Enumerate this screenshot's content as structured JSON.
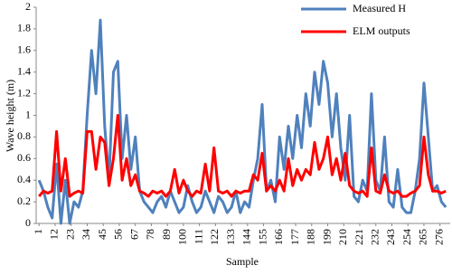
{
  "chart_data": {
    "type": "line",
    "xlabel": "Sample",
    "ylabel": "Wave height (m)",
    "x": [
      1,
      4,
      7,
      10,
      13,
      16,
      19,
      22,
      25,
      28,
      31,
      34,
      37,
      40,
      43,
      46,
      49,
      52,
      55,
      58,
      61,
      64,
      67,
      70,
      73,
      76,
      79,
      82,
      85,
      88,
      91,
      94,
      97,
      100,
      103,
      106,
      109,
      112,
      115,
      118,
      121,
      124,
      127,
      130,
      133,
      136,
      139,
      142,
      145,
      148,
      151,
      154,
      157,
      160,
      163,
      166,
      169,
      172,
      175,
      178,
      181,
      184,
      187,
      190,
      193,
      196,
      199,
      202,
      205,
      208,
      211,
      214,
      217,
      220,
      223,
      226,
      229,
      232,
      235,
      238,
      241,
      244,
      247,
      250,
      253,
      256,
      259,
      262,
      265,
      268,
      271,
      274,
      277,
      280
    ],
    "series": [
      {
        "name": "Measured H",
        "color": "#4f81bd",
        "values": [
          0.4,
          0.3,
          0.15,
          0.05,
          0.55,
          0,
          0.4,
          0,
          0.2,
          0.15,
          0.3,
          1.0,
          1.6,
          1.2,
          1.88,
          0.9,
          0.4,
          1.4,
          1.5,
          0.6,
          1.0,
          0.5,
          0.8,
          0.3,
          0.2,
          0.15,
          0.1,
          0.2,
          0.25,
          0.15,
          0.3,
          0.2,
          0.1,
          0.15,
          0.35,
          0.2,
          0.1,
          0.15,
          0.3,
          0.2,
          0.1,
          0.25,
          0.2,
          0.1,
          0.15,
          0.3,
          0.1,
          0.2,
          0.15,
          0.4,
          0.6,
          1.1,
          0.3,
          0.4,
          0.2,
          0.8,
          0.5,
          0.9,
          0.6,
          1.0,
          0.7,
          1.2,
          0.9,
          1.4,
          1.1,
          1.5,
          1.3,
          0.8,
          1.2,
          0.7,
          0.4,
          1.0,
          0.25,
          0.2,
          0.4,
          0.3,
          1.2,
          0.4,
          0.3,
          0.8,
          0.2,
          0.15,
          0.5,
          0.15,
          0.1,
          0.1,
          0.3,
          0.6,
          1.3,
          0.8,
          0.3,
          0.35,
          0.2,
          0.15
        ]
      },
      {
        "name": "ELM outputs",
        "color": "#ff0000",
        "values": [
          0.25,
          0.3,
          0.28,
          0.3,
          0.85,
          0.3,
          0.6,
          0.25,
          0.28,
          0.3,
          0.28,
          0.85,
          0.85,
          0.5,
          0.8,
          0.75,
          0.35,
          0.6,
          1.0,
          0.4,
          0.6,
          0.35,
          0.45,
          0.3,
          0.28,
          0.25,
          0.3,
          0.28,
          0.3,
          0.25,
          0.3,
          0.5,
          0.28,
          0.4,
          0.3,
          0.25,
          0.3,
          0.28,
          0.55,
          0.3,
          0.7,
          0.3,
          0.28,
          0.3,
          0.25,
          0.3,
          0.28,
          0.3,
          0.3,
          0.45,
          0.4,
          0.65,
          0.3,
          0.35,
          0.3,
          0.4,
          0.3,
          0.6,
          0.35,
          0.5,
          0.4,
          0.5,
          0.45,
          0.75,
          0.5,
          0.6,
          0.8,
          0.45,
          0.6,
          0.4,
          0.65,
          0.35,
          0.3,
          0.28,
          0.3,
          0.25,
          0.7,
          0.3,
          0.28,
          0.45,
          0.3,
          0.28,
          0.3,
          0.25,
          0.25,
          0.28,
          0.3,
          0.35,
          0.8,
          0.45,
          0.3,
          0.3,
          0.28,
          0.3
        ]
      }
    ],
    "xlim": [
      -1,
      283
    ],
    "xticks": [
      1,
      12,
      23,
      34,
      45,
      56,
      67,
      78,
      89,
      100,
      111,
      122,
      133,
      144,
      155,
      166,
      177,
      188,
      199,
      210,
      221,
      232,
      243,
      254,
      265,
      276
    ],
    "ylim": [
      0,
      2
    ],
    "yticks": [
      0,
      0.2,
      0.4,
      0.6,
      0.8,
      1,
      1.2,
      1.4,
      1.6,
      1.8,
      2
    ],
    "grid": false,
    "legend": "upper right"
  }
}
